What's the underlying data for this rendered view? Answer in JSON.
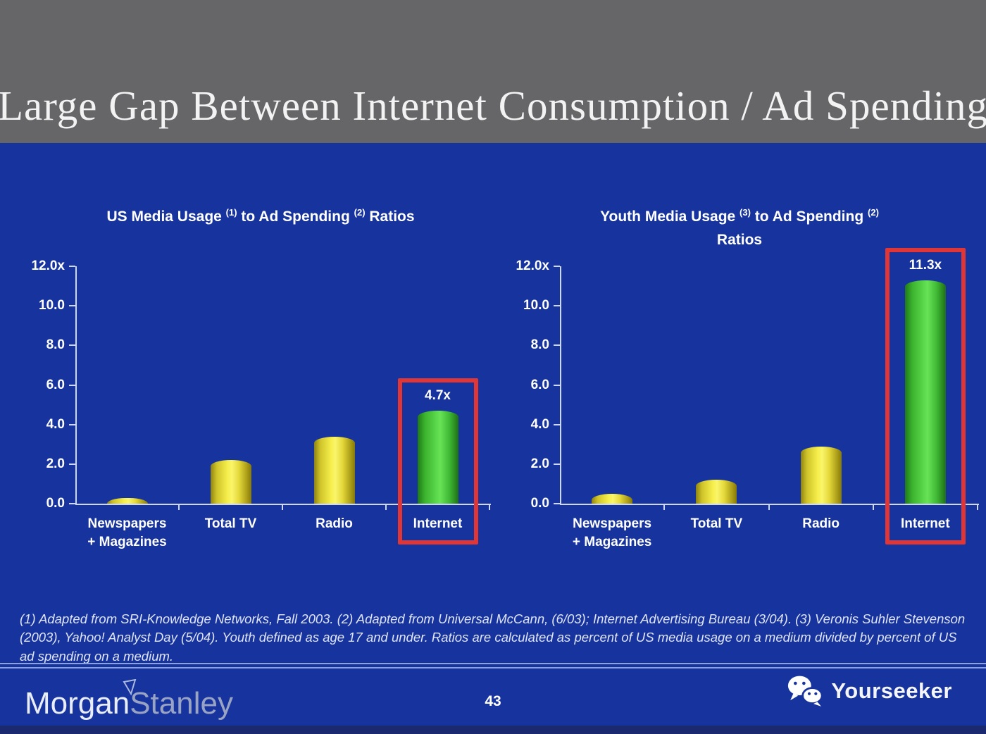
{
  "slide": {
    "title": "Large Gap Between Internet Consumption / Ad Spending",
    "footnote": "(1) Adapted from SRI-Knowledge Networks, Fall 2003.  (2) Adapted from Universal McCann, (6/03); Internet Advertising Bureau (3/04). (3) Veronis Suhler Stevenson (2003), Yahoo! Analyst Day (5/04).  Youth defined as age 17 and under.  Ratios are calculated as percent of US media usage on a medium divided by percent of US ad spending on a medium.",
    "page_number": "43"
  },
  "footer": {
    "brand_left_primary": "Morgan",
    "brand_left_secondary": "Stanley",
    "brand_right": "Yourseeker",
    "brand_right_icon": "wechat-icon"
  },
  "colors": {
    "background": "#17339e",
    "header_gray": "#666669",
    "bar_yellow": "#f6ef4d",
    "bar_green": "#5ad74a",
    "highlight_red": "#e03636",
    "axis_light_blue": "#ccd8f5",
    "text_white": "#ffffff"
  },
  "chart_data": [
    {
      "type": "bar",
      "title": "US Media Usage (1) to Ad Spending (2) Ratios",
      "title_segments": [
        {
          "t": "US Media Usage "
        },
        {
          "t": "(1)",
          "sup": true
        },
        {
          "t": " to Ad Spending "
        },
        {
          "t": "(2)",
          "sup": true
        },
        {
          "t": " Ratios"
        }
      ],
      "categories": [
        "Newspapers\n+ Magazines",
        "Total TV",
        "Radio",
        "Internet"
      ],
      "values": [
        0.3,
        2.2,
        3.4,
        4.7
      ],
      "bar_colors": [
        "yellow",
        "yellow",
        "yellow",
        "green"
      ],
      "value_labels": [
        "",
        "",
        "",
        "4.7x"
      ],
      "y_ticks": [
        "12.0x",
        "10.0",
        "8.0",
        "6.0",
        "4.0",
        "2.0",
        "0.0"
      ],
      "ylim": [
        0,
        12
      ],
      "grid": false,
      "legend": false,
      "highlighted_category": "Internet"
    },
    {
      "type": "bar",
      "title": "Youth Media Usage (3) to Ad Spending (2) Ratios",
      "title_segments": [
        {
          "t": "Youth Media Usage "
        },
        {
          "t": "(3)",
          "sup": true
        },
        {
          "t": " to Ad Spending "
        },
        {
          "t": "(2)",
          "sup": true
        },
        {
          "br": true
        },
        {
          "t": "Ratios"
        }
      ],
      "categories": [
        "Newspapers\n+ Magazines",
        "Total TV",
        "Radio",
        "Internet"
      ],
      "values": [
        0.5,
        1.2,
        2.9,
        11.3
      ],
      "bar_colors": [
        "yellow",
        "yellow",
        "yellow",
        "green"
      ],
      "value_labels": [
        "",
        "",
        "",
        "11.3x"
      ],
      "y_ticks": [
        "12.0x",
        "10.0",
        "8.0",
        "6.0",
        "4.0",
        "2.0",
        "0.0"
      ],
      "ylim": [
        0,
        12
      ],
      "grid": false,
      "legend": false,
      "highlighted_category": "Internet"
    }
  ]
}
